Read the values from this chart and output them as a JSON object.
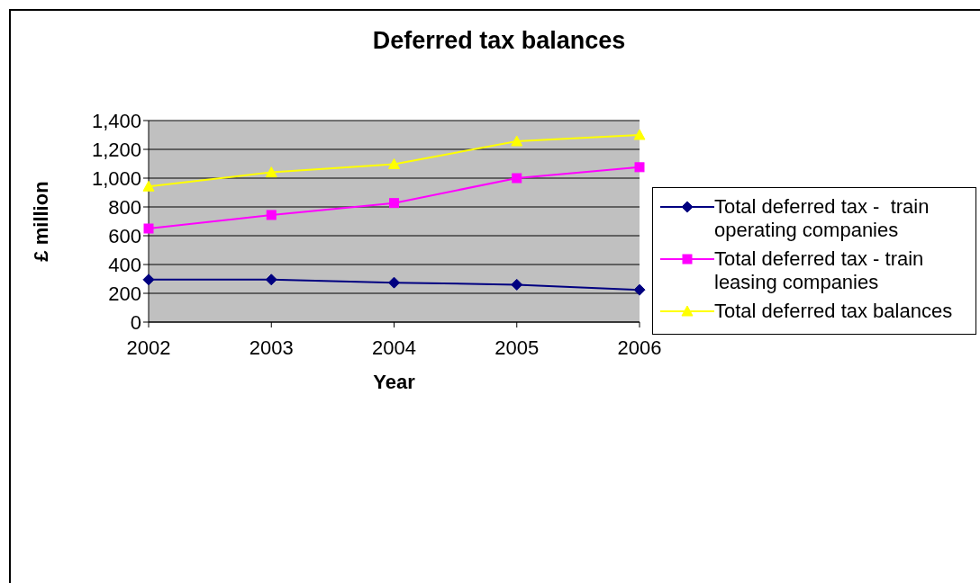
{
  "chart_data": {
    "type": "line",
    "title": "Deferred tax balances",
    "xlabel": "Year",
    "ylabel": "£ million",
    "categories": [
      "2002",
      "2003",
      "2004",
      "2005",
      "2006"
    ],
    "series": [
      {
        "name": "Total deferred tax -  train operating companies",
        "color": "#000080",
        "marker": "diamond",
        "values": [
          295,
          295,
          274,
          260,
          224
        ]
      },
      {
        "name": "Total deferred tax - train leasing companies",
        "color": "#ff00ff",
        "marker": "square",
        "values": [
          650,
          744,
          827,
          1000,
          1076
        ]
      },
      {
        "name": "Total deferred tax balances",
        "color": "#ffff00",
        "marker": "triangle",
        "values": [
          942,
          1040,
          1097,
          1256,
          1300
        ]
      }
    ],
    "ylim": [
      0,
      1400
    ],
    "yticks": [
      {
        "value": 0,
        "label": "0"
      },
      {
        "value": 200,
        "label": "200"
      },
      {
        "value": 400,
        "label": "400"
      },
      {
        "value": 600,
        "label": "600"
      },
      {
        "value": 800,
        "label": "800"
      },
      {
        "value": 1000,
        "label": "1,000"
      },
      {
        "value": 1200,
        "label": "1,200"
      },
      {
        "value": 1400,
        "label": "1,400"
      }
    ],
    "grid": "y",
    "legend": "right",
    "line_style": "solid"
  }
}
